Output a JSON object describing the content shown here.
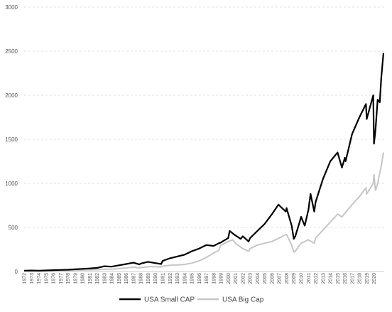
{
  "chart_data": {
    "type": "line",
    "title": "",
    "xlabel": "",
    "ylabel": "",
    "ylim": [
      0,
      3000
    ],
    "yticks": [
      0,
      500,
      1000,
      1500,
      2000,
      2500,
      3000
    ],
    "xlim": [
      1972,
      2021.4
    ],
    "xticks": [
      "1972",
      "1973",
      "1974",
      "1975",
      "1976",
      "1977",
      "1978",
      "1979",
      "1980",
      "1981",
      "1982",
      "1983",
      "1984",
      "1985",
      "1986",
      "1987",
      "1988",
      "1989",
      "1990",
      "1991",
      "1992",
      "1993",
      "1994",
      "1995",
      "1996",
      "1997",
      "1998",
      "1999",
      "2000",
      "2001",
      "2002",
      "2003",
      "2004",
      "2005",
      "2006",
      "2007",
      "2008",
      "2009",
      "2010",
      "2011",
      "2012",
      "2013",
      "2014",
      "2015",
      "2016",
      "2017",
      "2018",
      "2019",
      "2020"
    ],
    "grid": "horizontal",
    "legend_position": "bottom",
    "series": [
      {
        "name": "USA Small CAP",
        "color": "#000000",
        "x": [
          1972,
          1973,
          1974,
          1975,
          1976,
          1977,
          1978,
          1979,
          1980,
          1981,
          1982,
          1983,
          1984,
          1985,
          1986,
          1987,
          1987.8,
          1988,
          1989,
          1990,
          1990.8,
          1991,
          1992,
          1993,
          1994,
          1995,
          1996,
          1997,
          1998,
          1998.7,
          1999,
          2000,
          2000.2,
          2000.8,
          2001,
          2001.7,
          2002,
          2002.8,
          2003,
          2004,
          2005,
          2006,
          2006.9,
          2007,
          2007.9,
          2008,
          2008.7,
          2009,
          2009.2,
          2009.8,
          2010,
          2010.5,
          2011,
          2011.3,
          2011.8,
          2012,
          2013,
          2014,
          2015,
          2015.6,
          2016,
          2016.1,
          2017,
          2018,
          2018.9,
          2019,
          2019.9,
          2020,
          2020.2,
          2020.5,
          2020.8,
          2021,
          2021.3
        ],
        "y": [
          10,
          11,
          9,
          12,
          15,
          18,
          20,
          25,
          30,
          35,
          40,
          60,
          55,
          70,
          85,
          100,
          80,
          90,
          110,
          95,
          85,
          120,
          150,
          170,
          190,
          230,
          260,
          300,
          290,
          320,
          330,
          380,
          460,
          420,
          410,
          370,
          400,
          340,
          380,
          460,
          540,
          650,
          760,
          750,
          680,
          720,
          520,
          370,
          400,
          560,
          620,
          520,
          700,
          880,
          680,
          790,
          1050,
          1250,
          1350,
          1180,
          1290,
          1250,
          1560,
          1750,
          1900,
          1730,
          2000,
          1450,
          1600,
          1950,
          1920,
          2200,
          2480
        ]
      },
      {
        "name": "USA Big Cap",
        "color": "#c6c6c6",
        "x": [
          1972,
          1973,
          1974,
          1975,
          1976,
          1977,
          1978,
          1979,
          1980,
          1981,
          1982,
          1983,
          1984,
          1985,
          1986,
          1987,
          1987.8,
          1988,
          1989,
          1990,
          1990.8,
          1991,
          1992,
          1993,
          1994,
          1995,
          1996,
          1997,
          1998,
          1998.7,
          1999,
          2000,
          2000.6,
          2001,
          2002,
          2002.8,
          2003,
          2004,
          2005,
          2006,
          2007,
          2007.9,
          2008,
          2008.7,
          2009,
          2009.2,
          2010,
          2011,
          2011.8,
          2012,
          2013,
          2014,
          2015,
          2015.6,
          2016,
          2017,
          2018,
          2018.9,
          2019,
          2019.9,
          2020,
          2020.2,
          2020.5,
          2021,
          2021.3
        ],
        "y": [
          8,
          9,
          7,
          9,
          10,
          11,
          12,
          14,
          17,
          18,
          20,
          25,
          27,
          32,
          40,
          50,
          40,
          45,
          55,
          55,
          50,
          60,
          70,
          75,
          80,
          95,
          120,
          160,
          210,
          240,
          300,
          340,
          360,
          320,
          260,
          230,
          260,
          300,
          320,
          340,
          380,
          420,
          420,
          300,
          220,
          230,
          320,
          360,
          320,
          380,
          470,
          560,
          650,
          620,
          660,
          760,
          850,
          950,
          880,
          1000,
          1100,
          920,
          1000,
          1200,
          1350
        ]
      }
    ]
  }
}
